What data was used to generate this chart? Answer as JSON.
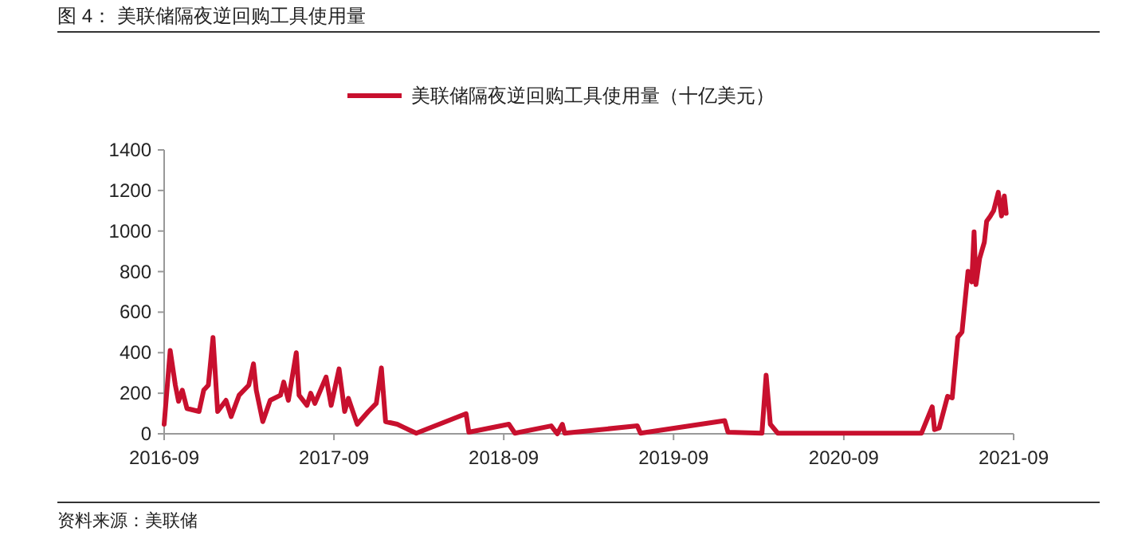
{
  "chart_data": {
    "type": "line",
    "title": "图 4： 美联储隔夜逆回购工具使用量",
    "annotations": [
      "资料来源：美联储"
    ],
    "x": [
      "2016-09-01",
      "2016-09-14",
      "2016-09-25",
      "2016-10-02",
      "2016-10-10",
      "2016-10-20",
      "2016-11-15",
      "2016-11-25",
      "2016-12-05",
      "2016-12-15",
      "2016-12-25",
      "2017-01-12",
      "2017-01-23",
      "2017-02-09",
      "2017-03-02",
      "2017-03-12",
      "2017-03-18",
      "2017-04-01",
      "2017-04-17",
      "2017-05-09",
      "2017-05-16",
      "2017-05-26",
      "2017-06-12",
      "2017-06-18",
      "2017-07-05",
      "2017-07-13",
      "2017-07-22",
      "2017-08-15",
      "2017-08-26",
      "2017-09-12",
      "2017-09-24",
      "2017-10-02",
      "2017-10-21",
      "2017-11-14",
      "2017-12-01",
      "2017-12-12",
      "2017-12-21",
      "2018-01-15",
      "2018-02-09",
      "2018-02-25",
      "2018-06-12",
      "2018-06-18",
      "2018-09-12",
      "2018-09-25",
      "2018-12-12",
      "2018-12-25",
      "2019-01-05",
      "2019-01-10",
      "2019-06-15",
      "2019-06-22",
      "2019-12-20",
      "2019-12-27",
      "2020-03-09",
      "2020-03-18",
      "2020-03-27",
      "2020-04-12",
      "2021-02-15",
      "2021-03-10",
      "2021-03-15",
      "2021-03-25",
      "2021-04-12",
      "2021-04-22",
      "2021-05-04",
      "2021-05-13",
      "2021-05-26",
      "2021-06-03",
      "2021-06-08",
      "2021-06-12",
      "2021-06-20",
      "2021-06-30",
      "2021-07-05",
      "2021-07-13",
      "2021-07-20",
      "2021-07-30",
      "2021-08-06",
      "2021-08-12",
      "2021-08-16"
    ],
    "series": [
      {
        "name": "美联储隔夜逆回购工具使用量（十亿美元）",
        "color": "#c8102e",
        "values": [
          47,
          411,
          240,
          160,
          215,
          125,
          110,
          215,
          240,
          475,
          110,
          165,
          85,
          190,
          240,
          345,
          215,
          60,
          165,
          190,
          255,
          165,
          400,
          190,
          140,
          200,
          150,
          280,
          140,
          320,
          110,
          175,
          47,
          110,
          150,
          325,
          60,
          47,
          20,
          3,
          99,
          8,
          47,
          3,
          39,
          0,
          47,
          3,
          39,
          3,
          65,
          8,
          3,
          289,
          47,
          3,
          3,
          133,
          21,
          29,
          185,
          177,
          476,
          502,
          801,
          749,
          996,
          736,
          866,
          944,
          1048,
          1074,
          1100,
          1191,
          1074,
          1173,
          1087
        ]
      }
    ],
    "xlim": [
      "2016-09",
      "2021-09"
    ],
    "xticks": [
      "2016-09",
      "2017-09",
      "2018-09",
      "2019-09",
      "2020-09",
      "2021-09"
    ],
    "ylim": [
      0,
      1400
    ],
    "yticks": [
      0,
      200,
      400,
      600,
      800,
      1000,
      1200,
      1400
    ],
    "grid": false,
    "legend": "top",
    "marker": "none",
    "line_style": "solid"
  }
}
